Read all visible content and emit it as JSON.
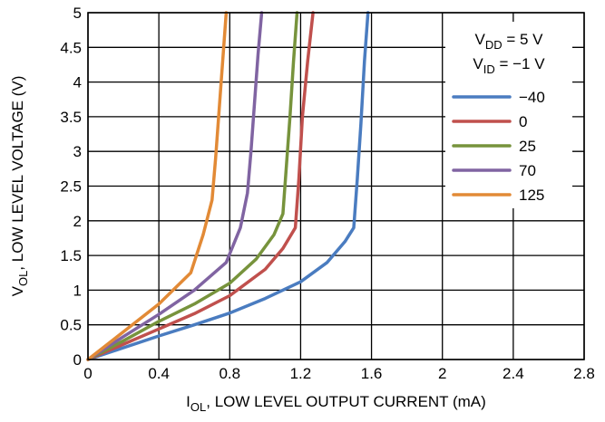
{
  "chart_data": {
    "type": "line",
    "xlabel": {
      "main": "I",
      "sub": "OL",
      "rest": ", LOW LEVEL OUTPUT CURRENT (mA)"
    },
    "ylabel": {
      "main": "V",
      "sub": "OL",
      "rest": ", LOW LEVEL VOLTAGE (V)"
    },
    "xlim": [
      0,
      2.8
    ],
    "ylim": [
      0,
      5
    ],
    "x_ticks": [
      "0",
      "0.4",
      "0.8",
      "1.2",
      "1.6",
      "2",
      "2.4",
      "2.8"
    ],
    "y_ticks": [
      "0",
      "0.5",
      "1",
      "1.5",
      "2",
      "2.5",
      "3",
      "3.5",
      "4",
      "4.5",
      "5"
    ],
    "grid": true,
    "legend_position": "top-right",
    "conditions": [
      {
        "main": "V",
        "sub": "DD",
        "rest": " = 5 V"
      },
      {
        "main": "V",
        "sub": "ID",
        "rest": " = −1 V"
      }
    ],
    "series": [
      {
        "name": "−40",
        "color": "#4a7cc0",
        "x": [
          0,
          0.2,
          0.4,
          0.6,
          0.8,
          1.0,
          1.2,
          1.35,
          1.45,
          1.5,
          1.52,
          1.54,
          1.56,
          1.58
        ],
        "y": [
          0,
          0.17,
          0.34,
          0.5,
          0.67,
          0.88,
          1.12,
          1.4,
          1.7,
          1.9,
          2.6,
          3.4,
          4.3,
          5
        ]
      },
      {
        "name": "0",
        "color": "#c0504d",
        "x": [
          0,
          0.2,
          0.4,
          0.6,
          0.8,
          1.0,
          1.1,
          1.17,
          1.19,
          1.21,
          1.24,
          1.27
        ],
        "y": [
          0,
          0.22,
          0.44,
          0.66,
          0.92,
          1.3,
          1.6,
          1.9,
          2.6,
          3.5,
          4.3,
          5
        ]
      },
      {
        "name": "25",
        "color": "#77933c",
        "x": [
          0,
          0.2,
          0.4,
          0.6,
          0.8,
          0.95,
          1.05,
          1.1,
          1.12,
          1.14,
          1.16,
          1.18
        ],
        "y": [
          0,
          0.27,
          0.55,
          0.8,
          1.1,
          1.45,
          1.8,
          2.1,
          2.8,
          3.5,
          4.3,
          5
        ]
      },
      {
        "name": "70",
        "color": "#8064a2",
        "x": [
          0,
          0.2,
          0.4,
          0.6,
          0.78,
          0.86,
          0.9,
          0.92,
          0.94,
          0.96,
          0.98
        ],
        "y": [
          0,
          0.33,
          0.65,
          1.0,
          1.4,
          1.9,
          2.4,
          3.0,
          3.7,
          4.4,
          5
        ]
      },
      {
        "name": "125",
        "color": "#e28a36",
        "x": [
          0,
          0.2,
          0.4,
          0.58,
          0.65,
          0.7,
          0.72,
          0.74,
          0.76,
          0.78
        ],
        "y": [
          0,
          0.4,
          0.8,
          1.25,
          1.8,
          2.3,
          2.9,
          3.6,
          4.3,
          5
        ]
      }
    ]
  }
}
